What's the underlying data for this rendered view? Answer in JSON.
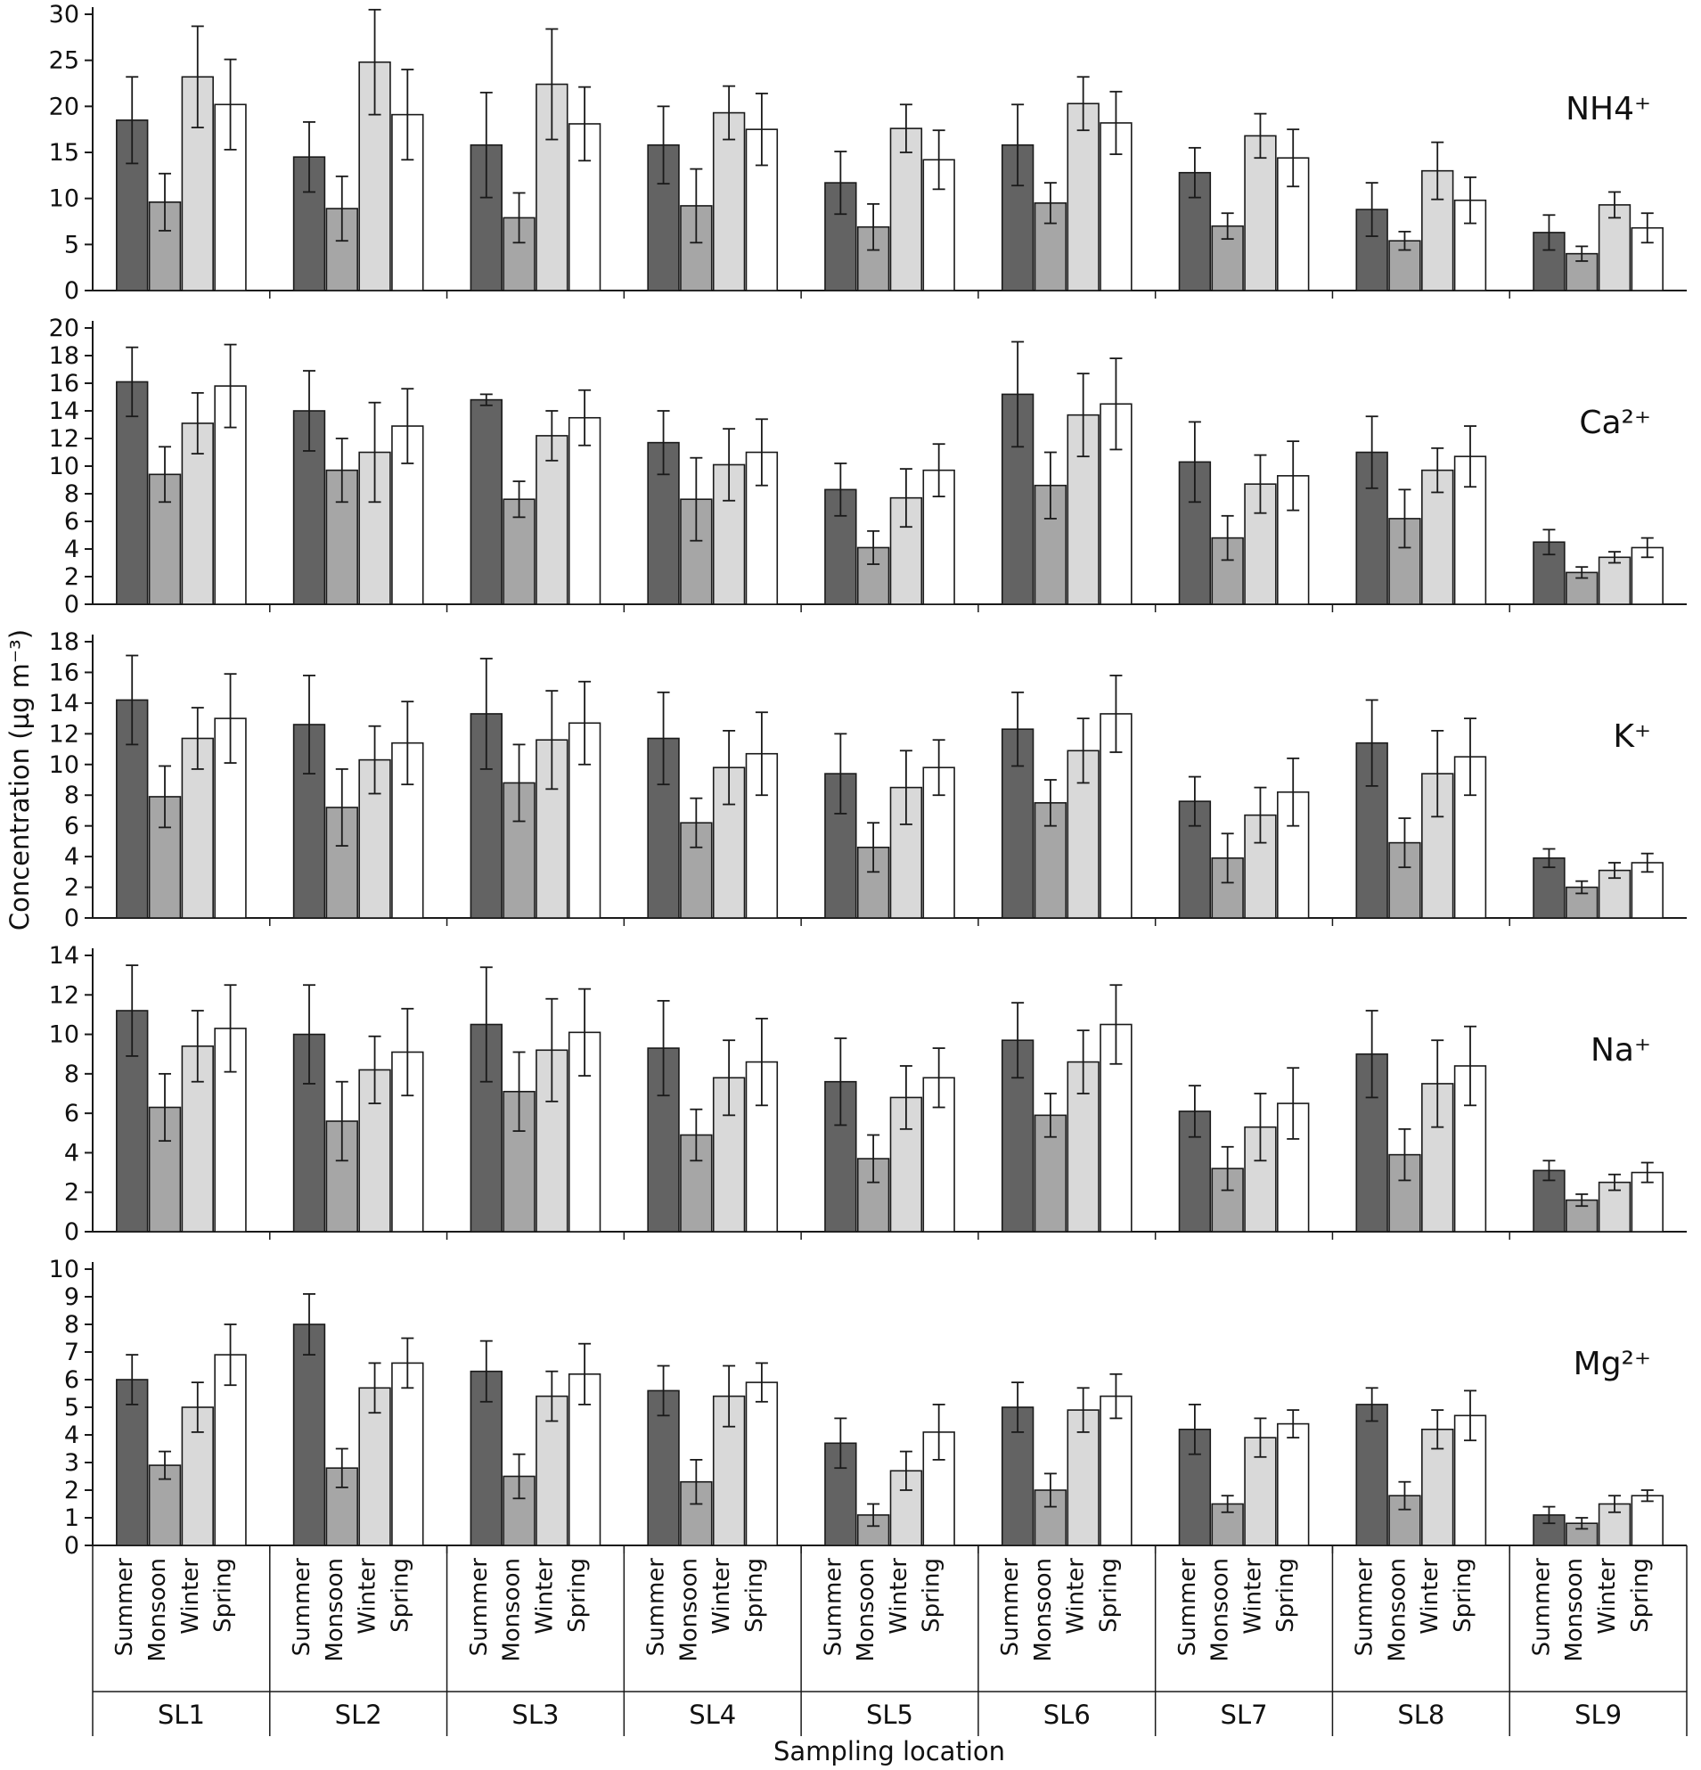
{
  "chart_data": {
    "type": "bar",
    "title": "",
    "ylabel": "Concentration (µg m⁻³)",
    "xlabel": "Sampling location",
    "legend_position": "none",
    "grid": false,
    "categories": [
      "SL1",
      "SL2",
      "SL3",
      "SL4",
      "SL5",
      "SL6",
      "SL7",
      "SL8",
      "SL9"
    ],
    "seasons": [
      "Summer",
      "Monsoon",
      "Winter",
      "Spring"
    ],
    "season_colors": [
      "#636363",
      "#a6a6a6",
      "#d9d9d9",
      "#ffffff"
    ],
    "bar_edge_color": "#1a1a1a",
    "axis_color": "#1a1a1a",
    "panels": [
      {
        "id": "nh4",
        "label": "NH4⁺",
        "ylim": [
          0,
          30
        ],
        "ystep": 5,
        "series": [
          {
            "name": "Summer",
            "values": [
              18.5,
              14.5,
              15.8,
              15.8,
              11.7,
              15.8,
              12.8,
              8.8,
              6.3
            ],
            "errors": [
              4.7,
              3.8,
              5.7,
              4.2,
              3.4,
              4.4,
              2.7,
              2.9,
              1.9
            ]
          },
          {
            "name": "Monsoon",
            "values": [
              9.6,
              8.9,
              7.9,
              9.2,
              6.9,
              9.5,
              7.0,
              5.4,
              4.0
            ],
            "errors": [
              3.1,
              3.5,
              2.7,
              4.0,
              2.5,
              2.2,
              1.4,
              1.0,
              0.8
            ]
          },
          {
            "name": "Winter",
            "values": [
              23.2,
              24.8,
              22.4,
              19.3,
              17.6,
              20.3,
              16.8,
              13.0,
              9.3
            ],
            "errors": [
              5.5,
              5.7,
              6.0,
              2.9,
              2.6,
              2.9,
              2.4,
              3.1,
              1.4
            ]
          },
          {
            "name": "Spring",
            "values": [
              20.2,
              19.1,
              18.1,
              17.5,
              14.2,
              18.2,
              14.4,
              9.8,
              6.8
            ],
            "errors": [
              4.9,
              4.9,
              4.0,
              3.9,
              3.2,
              3.4,
              3.1,
              2.5,
              1.6
            ]
          }
        ]
      },
      {
        "id": "ca",
        "label": "Ca²⁺",
        "ylim": [
          0,
          20
        ],
        "ystep": 2,
        "series": [
          {
            "name": "Summer",
            "values": [
              16.1,
              14.0,
              14.8,
              11.7,
              8.3,
              15.2,
              10.3,
              11.0,
              4.5
            ],
            "errors": [
              2.5,
              2.9,
              0.4,
              2.3,
              1.9,
              3.8,
              2.9,
              2.6,
              0.9
            ]
          },
          {
            "name": "Monsoon",
            "values": [
              9.4,
              9.7,
              7.6,
              7.6,
              4.1,
              8.6,
              4.8,
              6.2,
              2.3
            ],
            "errors": [
              2.0,
              2.3,
              1.3,
              3.0,
              1.2,
              2.4,
              1.6,
              2.1,
              0.4
            ]
          },
          {
            "name": "Winter",
            "values": [
              13.1,
              11.0,
              12.2,
              10.1,
              7.7,
              13.7,
              8.7,
              9.7,
              3.4
            ],
            "errors": [
              2.2,
              3.6,
              1.8,
              2.6,
              2.1,
              3.0,
              2.1,
              1.6,
              0.4
            ]
          },
          {
            "name": "Spring",
            "values": [
              15.8,
              12.9,
              13.5,
              11.0,
              9.7,
              14.5,
              9.3,
              10.7,
              4.1
            ],
            "errors": [
              3.0,
              2.7,
              2.0,
              2.4,
              1.9,
              3.3,
              2.5,
              2.2,
              0.7
            ]
          }
        ]
      },
      {
        "id": "k",
        "label": "K⁺",
        "ylim": [
          0,
          18
        ],
        "ystep": 2,
        "series": [
          {
            "name": "Summer",
            "values": [
              14.2,
              12.6,
              13.3,
              11.7,
              9.4,
              12.3,
              7.6,
              11.4,
              3.9
            ],
            "errors": [
              2.9,
              3.2,
              3.6,
              3.0,
              2.6,
              2.4,
              1.6,
              2.8,
              0.6
            ]
          },
          {
            "name": "Monsoon",
            "values": [
              7.9,
              7.2,
              8.8,
              6.2,
              4.6,
              7.5,
              3.9,
              4.9,
              2.0
            ],
            "errors": [
              2.0,
              2.5,
              2.5,
              1.6,
              1.6,
              1.5,
              1.6,
              1.6,
              0.4
            ]
          },
          {
            "name": "Winter",
            "values": [
              11.7,
              10.3,
              11.6,
              9.8,
              8.5,
              10.9,
              6.7,
              9.4,
              3.1
            ],
            "errors": [
              2.0,
              2.2,
              3.2,
              2.4,
              2.4,
              2.1,
              1.8,
              2.8,
              0.5
            ]
          },
          {
            "name": "Spring",
            "values": [
              13.0,
              11.4,
              12.7,
              10.7,
              9.8,
              13.3,
              8.2,
              10.5,
              3.6
            ],
            "errors": [
              2.9,
              2.7,
              2.7,
              2.7,
              1.8,
              2.5,
              2.2,
              2.5,
              0.6
            ]
          }
        ]
      },
      {
        "id": "na",
        "label": "Na⁺",
        "ylim": [
          0,
          14
        ],
        "ystep": 2,
        "series": [
          {
            "name": "Summer",
            "values": [
              11.2,
              10.0,
              10.5,
              9.3,
              7.6,
              9.7,
              6.1,
              9.0,
              3.1
            ],
            "errors": [
              2.3,
              2.5,
              2.9,
              2.4,
              2.2,
              1.9,
              1.3,
              2.2,
              0.5
            ]
          },
          {
            "name": "Monsoon",
            "values": [
              6.3,
              5.6,
              7.1,
              4.9,
              3.7,
              5.9,
              3.2,
              3.9,
              1.6
            ],
            "errors": [
              1.7,
              2.0,
              2.0,
              1.3,
              1.2,
              1.1,
              1.1,
              1.3,
              0.3
            ]
          },
          {
            "name": "Winter",
            "values": [
              9.4,
              8.2,
              9.2,
              7.8,
              6.8,
              8.6,
              5.3,
              7.5,
              2.5
            ],
            "errors": [
              1.8,
              1.7,
              2.6,
              1.9,
              1.6,
              1.6,
              1.7,
              2.2,
              0.4
            ]
          },
          {
            "name": "Spring",
            "values": [
              10.3,
              9.1,
              10.1,
              8.6,
              7.8,
              10.5,
              6.5,
              8.4,
              3.0
            ],
            "errors": [
              2.2,
              2.2,
              2.2,
              2.2,
              1.5,
              2.0,
              1.8,
              2.0,
              0.5
            ]
          }
        ]
      },
      {
        "id": "mg",
        "label": "Mg²⁺",
        "ylim": [
          0,
          10
        ],
        "ystep": 1,
        "series": [
          {
            "name": "Summer",
            "values": [
              6.0,
              8.0,
              6.3,
              5.6,
              3.7,
              5.0,
              4.2,
              5.1,
              1.1
            ],
            "errors": [
              0.9,
              1.1,
              1.1,
              0.9,
              0.9,
              0.9,
              0.9,
              0.6,
              0.3
            ]
          },
          {
            "name": "Monsoon",
            "values": [
              2.9,
              2.8,
              2.5,
              2.3,
              1.1,
              2.0,
              1.5,
              1.8,
              0.8
            ],
            "errors": [
              0.5,
              0.7,
              0.8,
              0.8,
              0.4,
              0.6,
              0.3,
              0.5,
              0.2
            ]
          },
          {
            "name": "Winter",
            "values": [
              5.0,
              5.7,
              5.4,
              5.4,
              2.7,
              4.9,
              3.9,
              4.2,
              1.5
            ],
            "errors": [
              0.9,
              0.9,
              0.9,
              1.1,
              0.7,
              0.8,
              0.7,
              0.7,
              0.3
            ]
          },
          {
            "name": "Spring",
            "values": [
              6.9,
              6.6,
              6.2,
              5.9,
              4.1,
              5.4,
              4.4,
              4.7,
              1.8
            ],
            "errors": [
              1.1,
              0.9,
              1.1,
              0.7,
              1.0,
              0.8,
              0.5,
              0.9,
              0.2
            ]
          }
        ]
      }
    ]
  }
}
